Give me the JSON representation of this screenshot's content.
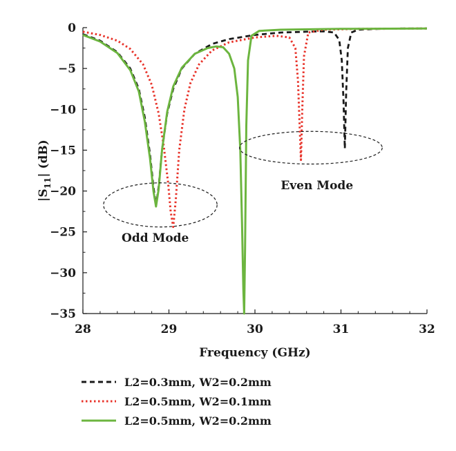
{
  "chart_data": {
    "type": "line",
    "title": "",
    "xlabel": "Frequency (GHz)",
    "ylabel_parts": {
      "pre": "|S",
      "sub": "11",
      "post": "| (dB)"
    },
    "xlim": [
      28,
      32
    ],
    "ylim": [
      -35,
      0
    ],
    "x_ticks": [
      28,
      29,
      30,
      31,
      32
    ],
    "y_ticks": [
      0,
      -5,
      -10,
      -15,
      -20,
      -25,
      -30,
      -35
    ],
    "x_tick_labels": [
      "28",
      "29",
      "30",
      "31",
      "32"
    ],
    "y_tick_labels": [
      "0",
      "−5",
      "−10",
      "−15",
      "−20",
      "−25",
      "−30",
      "−35"
    ],
    "grid": false,
    "legend_position": "bottom",
    "series": [
      {
        "name": "L2=0.3mm, W2=0.2mm",
        "color": "#1a1a1a",
        "dash": "dashed",
        "points": [
          [
            28.0,
            -0.8
          ],
          [
            28.2,
            -1.6
          ],
          [
            28.4,
            -3.0
          ],
          [
            28.55,
            -5.0
          ],
          [
            28.65,
            -7.5
          ],
          [
            28.72,
            -11.0
          ],
          [
            28.78,
            -15.5
          ],
          [
            28.82,
            -19.5
          ],
          [
            28.85,
            -21.8
          ],
          [
            28.88,
            -19.5
          ],
          [
            28.92,
            -15.0
          ],
          [
            28.98,
            -10.5
          ],
          [
            29.05,
            -7.5
          ],
          [
            29.15,
            -5.0
          ],
          [
            29.3,
            -3.2
          ],
          [
            29.5,
            -2.0
          ],
          [
            29.7,
            -1.4
          ],
          [
            30.0,
            -0.9
          ],
          [
            30.3,
            -0.6
          ],
          [
            30.6,
            -0.5
          ],
          [
            30.8,
            -0.45
          ],
          [
            30.92,
            -0.6
          ],
          [
            30.98,
            -1.5
          ],
          [
            31.01,
            -4.0
          ],
          [
            31.03,
            -9.0
          ],
          [
            31.045,
            -14.8
          ],
          [
            31.06,
            -8.0
          ],
          [
            31.08,
            -2.5
          ],
          [
            31.12,
            -0.6
          ],
          [
            31.2,
            -0.25
          ],
          [
            31.5,
            -0.12
          ],
          [
            32.0,
            -0.1
          ]
        ]
      },
      {
        "name": "L2=0.5mm, W2=0.1mm",
        "color": "#e8332a",
        "dash": "dotted",
        "points": [
          [
            28.0,
            -0.5
          ],
          [
            28.2,
            -0.9
          ],
          [
            28.4,
            -1.6
          ],
          [
            28.55,
            -2.6
          ],
          [
            28.7,
            -4.5
          ],
          [
            28.8,
            -7.0
          ],
          [
            28.88,
            -10.5
          ],
          [
            28.94,
            -14.5
          ],
          [
            28.99,
            -19.0
          ],
          [
            29.02,
            -22.5
          ],
          [
            29.05,
            -24.4
          ],
          [
            29.08,
            -21.0
          ],
          [
            29.12,
            -15.0
          ],
          [
            29.18,
            -10.0
          ],
          [
            29.25,
            -6.8
          ],
          [
            29.35,
            -4.5
          ],
          [
            29.5,
            -2.8
          ],
          [
            29.7,
            -1.8
          ],
          [
            30.0,
            -1.2
          ],
          [
            30.25,
            -1.0
          ],
          [
            30.4,
            -1.2
          ],
          [
            30.47,
            -2.5
          ],
          [
            30.5,
            -6.5
          ],
          [
            30.52,
            -12.0
          ],
          [
            30.535,
            -16.2
          ],
          [
            30.55,
            -10.0
          ],
          [
            30.57,
            -3.5
          ],
          [
            30.62,
            -0.6
          ],
          [
            30.8,
            -0.25
          ],
          [
            31.2,
            -0.15
          ],
          [
            32.0,
            -0.1
          ]
        ]
      },
      {
        "name": "L2=0.5mm, W2=0.2mm",
        "color": "#6cb53f",
        "dash": "solid",
        "points": [
          [
            28.0,
            -0.9
          ],
          [
            28.2,
            -1.7
          ],
          [
            28.4,
            -3.1
          ],
          [
            28.55,
            -5.2
          ],
          [
            28.65,
            -7.8
          ],
          [
            28.72,
            -11.5
          ],
          [
            28.78,
            -16.0
          ],
          [
            28.82,
            -20.0
          ],
          [
            28.85,
            -21.9
          ],
          [
            28.88,
            -19.8
          ],
          [
            28.92,
            -15.0
          ],
          [
            28.98,
            -10.3
          ],
          [
            29.05,
            -7.2
          ],
          [
            29.15,
            -4.9
          ],
          [
            29.3,
            -3.2
          ],
          [
            29.45,
            -2.5
          ],
          [
            29.55,
            -2.3
          ],
          [
            29.63,
            -2.4
          ],
          [
            29.7,
            -3.2
          ],
          [
            29.76,
            -5.0
          ],
          [
            29.8,
            -8.5
          ],
          [
            29.83,
            -15.0
          ],
          [
            29.85,
            -24.0
          ],
          [
            29.865,
            -32.0
          ],
          [
            29.875,
            -35.0
          ],
          [
            29.885,
            -27.0
          ],
          [
            29.9,
            -12.0
          ],
          [
            29.92,
            -4.0
          ],
          [
            29.96,
            -1.0
          ],
          [
            30.05,
            -0.4
          ],
          [
            30.3,
            -0.25
          ],
          [
            31.0,
            -0.15
          ],
          [
            32.0,
            -0.1
          ]
        ]
      }
    ],
    "annotations": [
      {
        "text": "Odd Mode",
        "x": 28.45,
        "y": -26.2,
        "ellipse": {
          "cx": 28.9,
          "cy": -21.7,
          "rx": 0.66,
          "ry": 2.7
        }
      },
      {
        "text": "Even Mode",
        "x": 30.3,
        "y": -19.8,
        "ellipse": {
          "cx": 30.65,
          "cy": -14.7,
          "rx": 0.83,
          "ry": 2.0
        }
      }
    ]
  }
}
